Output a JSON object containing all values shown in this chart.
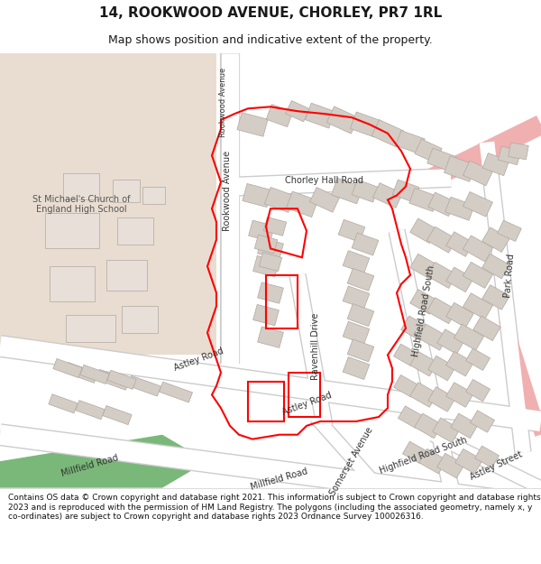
{
  "title": "14, ROOKWOOD AVENUE, CHORLEY, PR7 1RL",
  "subtitle": "Map shows position and indicative extent of the property.",
  "footer": "Contains OS data © Crown copyright and database right 2021. This information is subject to Crown copyright and database rights 2023 and is reproduced with the permission of HM Land Registry. The polygons (including the associated geometry, namely x, y co-ordinates) are subject to Crown copyright and database rights 2023 Ordnance Survey 100026316.",
  "map_bg": "#ffffff",
  "school_bg": "#e8ddd0",
  "green_strip_color": "#7ab87a",
  "building_color": "#d4cdc5",
  "building_edge": "#b0a8a0",
  "road_edge": "#cccccc",
  "pink_road": "#f0b0b0",
  "red_outline": "#ff0000",
  "label_color": "#333333",
  "school_label_color": "#555555",
  "title_color": "#1a1a1a",
  "footer_color": "#111111"
}
